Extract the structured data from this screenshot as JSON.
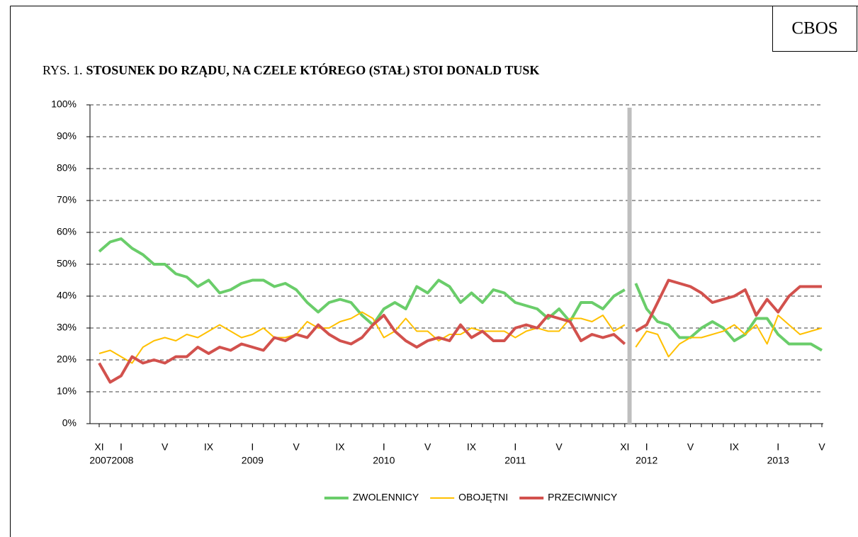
{
  "chart_data": {
    "type": "line",
    "badge": "CBOS",
    "title_prefix": "RYS. 1.",
    "title": "STOSUNEK DO RZĄDU, NA CZELE KTÓREGO (STAŁ) STOI DONALD TUSK",
    "categories": [
      "XI",
      null,
      "I",
      null,
      null,
      null,
      "V",
      null,
      null,
      null,
      "IX",
      null,
      null,
      null,
      "I",
      null,
      null,
      null,
      "V",
      null,
      null,
      null,
      "IX",
      null,
      null,
      null,
      "I",
      null,
      null,
      null,
      "V",
      null,
      null,
      null,
      "IX",
      null,
      null,
      null,
      "I",
      null,
      null,
      null,
      "V",
      null,
      null,
      null,
      null,
      null,
      "XI",
      null,
      "I",
      null,
      null,
      null,
      "V",
      null,
      null,
      null,
      "IX",
      null,
      null,
      null,
      "I",
      null,
      null,
      null,
      "V"
    ],
    "category_years": [
      "2007",
      null,
      "2008",
      null,
      null,
      null,
      null,
      null,
      null,
      null,
      null,
      null,
      null,
      null,
      "2009",
      null,
      null,
      null,
      null,
      null,
      null,
      null,
      null,
      null,
      null,
      null,
      "2010",
      null,
      null,
      null,
      null,
      null,
      null,
      null,
      null,
      null,
      null,
      null,
      "2011",
      null,
      null,
      null,
      null,
      null,
      null,
      null,
      null,
      null,
      null,
      null,
      "2012",
      null,
      null,
      null,
      null,
      null,
      null,
      null,
      null,
      null,
      null,
      null,
      "2013",
      null,
      null,
      null,
      null
    ],
    "divider_after_index": 48,
    "divider_color": "#bfbfbf",
    "ylim": [
      0,
      100
    ],
    "yticks": [
      {
        "value": 0,
        "label": "0%"
      },
      {
        "value": 10,
        "label": "10%"
      },
      {
        "value": 20,
        "label": "20%"
      },
      {
        "value": 30,
        "label": "30%"
      },
      {
        "value": 40,
        "label": "40%"
      },
      {
        "value": 50,
        "label": "50%"
      },
      {
        "value": 60,
        "label": "60%"
      },
      {
        "value": 70,
        "label": "70%"
      },
      {
        "value": 80,
        "label": "80%"
      },
      {
        "value": 90,
        "label": "90%"
      },
      {
        "value": 100,
        "label": "100%"
      }
    ],
    "grid": true,
    "legend": "bottom",
    "series": [
      {
        "name": "ZWOLENNICY",
        "color": "#6acd6a",
        "width": 4,
        "values": [
          54,
          57,
          58,
          55,
          53,
          50,
          50,
          47,
          46,
          43,
          45,
          41,
          42,
          44,
          45,
          45,
          43,
          44,
          42,
          38,
          35,
          38,
          39,
          38,
          34,
          31,
          36,
          38,
          36,
          43,
          41,
          45,
          43,
          38,
          41,
          38,
          42,
          41,
          38,
          37,
          36,
          33,
          36,
          32,
          38,
          38,
          36,
          40,
          42,
          44,
          36,
          32,
          31,
          27,
          27,
          30,
          32,
          30,
          26,
          28,
          33,
          33,
          28,
          25,
          25,
          25,
          23
        ]
      },
      {
        "name": "OBOJĘTNI",
        "color": "#ffc000",
        "width": 2,
        "values": [
          22,
          23,
          21,
          19,
          24,
          26,
          27,
          26,
          28,
          27,
          29,
          31,
          29,
          27,
          28,
          30,
          27,
          27,
          28,
          32,
          30,
          30,
          32,
          33,
          35,
          33,
          27,
          29,
          33,
          29,
          29,
          26,
          28,
          28,
          30,
          29,
          29,
          29,
          27,
          29,
          30,
          29,
          29,
          33,
          33,
          32,
          34,
          29,
          31,
          24,
          29,
          28,
          21,
          25,
          27,
          27,
          28,
          29,
          31,
          28,
          31,
          25,
          34,
          31,
          28,
          29,
          30
        ]
      },
      {
        "name": "PRZECIWNICY",
        "color": "#d2514d",
        "width": 4,
        "values": [
          19,
          13,
          15,
          21,
          19,
          20,
          19,
          21,
          21,
          24,
          22,
          24,
          23,
          25,
          24,
          23,
          27,
          26,
          28,
          27,
          31,
          28,
          26,
          25,
          27,
          31,
          34,
          29,
          26,
          24,
          26,
          27,
          26,
          31,
          27,
          29,
          26,
          26,
          30,
          31,
          30,
          34,
          33,
          32,
          26,
          28,
          27,
          28,
          25,
          29,
          31,
          38,
          45,
          44,
          43,
          41,
          38,
          39,
          40,
          42,
          34,
          39,
          35,
          40,
          43,
          43,
          43
        ]
      }
    ]
  }
}
